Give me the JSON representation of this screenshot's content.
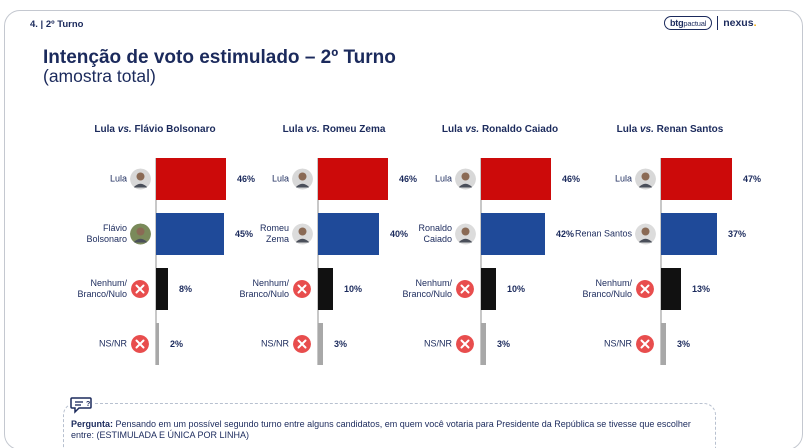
{
  "header": {
    "slide_number": "4. | 2º Turno",
    "logo_btg": "btg",
    "logo_pactual": "pactual",
    "logo_nexus": "nexus",
    "logo_dot": "."
  },
  "title": "Intenção de voto estimulado – 2º Turno",
  "subtitle": "(amostra total)",
  "colors": {
    "lula": "#cc0a0a",
    "opponent": "#1f4a99",
    "none": "#111111",
    "nsnr": "#a8a8a8",
    "x_badge": "#e84d4d",
    "text": "#1b2a5c"
  },
  "chart_data": [
    {
      "type": "bar",
      "title_a": "Lula",
      "title_vs": "vs.",
      "title_b": "Flávio Bolsonaro",
      "categories": [
        "Lula",
        "Flávio\nBolsonaro",
        "Nenhum/\nBranco/Nulo",
        "NS/NR"
      ],
      "values": [
        46,
        45,
        8,
        2
      ],
      "labels": [
        "46%",
        "45%",
        "8%",
        "2%"
      ]
    },
    {
      "type": "bar",
      "title_a": "Lula",
      "title_vs": "vs.",
      "title_b": "Romeu Zema",
      "categories": [
        "Lula",
        "Romeu\nZema",
        "Nenhum/\nBranco/Nulo",
        "NS/NR"
      ],
      "values": [
        46,
        40,
        10,
        3
      ],
      "labels": [
        "46%",
        "40%",
        "10%",
        "3%"
      ]
    },
    {
      "type": "bar",
      "title_a": "Lula",
      "title_vs": "vs.",
      "title_b": "Ronaldo Caiado",
      "categories": [
        "Lula",
        "Ronaldo\nCaiado",
        "Nenhum/\nBranco/Nulo",
        "NS/NR"
      ],
      "values": [
        46,
        42,
        10,
        3
      ],
      "labels": [
        "46%",
        "42%",
        "10%",
        "3%"
      ]
    },
    {
      "type": "bar",
      "title_a": "Lula",
      "title_vs": "vs.",
      "title_b": "Renan Santos",
      "categories": [
        "Lula",
        "Renan Santos",
        "Nenhum/\nBranco/Nulo",
        "NS/NR"
      ],
      "values": [
        47,
        37,
        13,
        3
      ],
      "labels": [
        "47%",
        "37%",
        "13%",
        "3%"
      ]
    }
  ],
  "note": {
    "label": "Pergunta:",
    "text": " Pensando em um possível segundo turno entre alguns candidatos, em quem você votaria para Presidente da República se tivesse que escolher entre: (ESTIMULADA E ÚNICA POR LINHA)"
  },
  "icons": {
    "question": "speech-bubble-question-icon",
    "avatar": "person-avatar-icon",
    "x_badge": "x-circle-icon"
  }
}
